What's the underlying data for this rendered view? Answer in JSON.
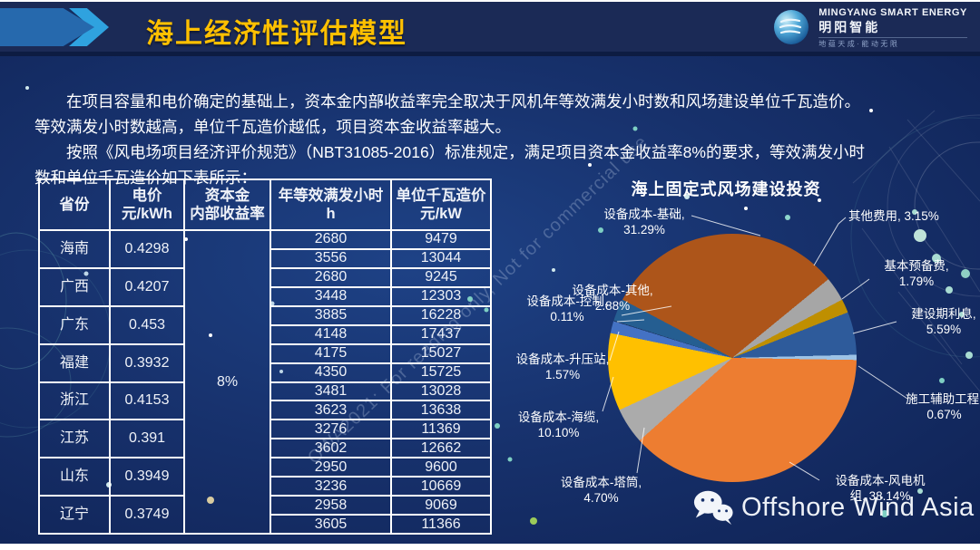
{
  "header": {
    "title": "海上经济性评估模型"
  },
  "logo": {
    "line1": "MINGYANG SMART ENERGY",
    "line2": "明阳智能",
    "line3": "地蕴天成·能动无限"
  },
  "paragraphs": {
    "p1": "在项目容量和电价确定的基础上，资本金内部收益率完全取决于风机年等效满发小时数和风场建设单位千瓦造价。等效满发小时数越高，单位千瓦造价越低，项目资本金收益率越大。",
    "p2": "按照《风电场项目经济评价规范》（NBT31085-2016）标准规定，满足项目资本金收益率8%的要求，等效满发小时数和单位千瓦造价如下表所示："
  },
  "table": {
    "columns": {
      "province": {
        "line1": "省份",
        "line2": ""
      },
      "price": {
        "line1": "电价",
        "line2": "元/kWh"
      },
      "irr": {
        "line1": "资本金",
        "line2": "内部收益率"
      },
      "hours": {
        "line1": "年等效满发小时",
        "line2": "h"
      },
      "cost": {
        "line1": "单位千瓦造价",
        "line2": "元/kW"
      }
    },
    "irr_value": "8%",
    "rows": [
      {
        "province": "海南",
        "price": "0.4298",
        "hours": [
          "2680",
          "3556"
        ],
        "costs": [
          "9479",
          "13044"
        ]
      },
      {
        "province": "广西",
        "price": "0.4207",
        "hours": [
          "2680",
          "3448"
        ],
        "costs": [
          "9245",
          "12303"
        ]
      },
      {
        "province": "广东",
        "price": "0.453",
        "hours": [
          "3885",
          "4148"
        ],
        "costs": [
          "16228",
          "17437"
        ]
      },
      {
        "province": "福建",
        "price": "0.3932",
        "hours": [
          "4175",
          "4350"
        ],
        "costs": [
          "15027",
          "15725"
        ]
      },
      {
        "province": "浙江",
        "price": "0.4153",
        "hours": [
          "3481",
          "3623"
        ],
        "costs": [
          "13028",
          "13638"
        ]
      },
      {
        "province": "江苏",
        "price": "0.391",
        "hours": [
          "3276",
          "3602"
        ],
        "costs": [
          "11369",
          "12662"
        ]
      },
      {
        "province": "山东",
        "price": "0.3949",
        "hours": [
          "2950",
          "3236"
        ],
        "costs": [
          "9600",
          "10669"
        ]
      },
      {
        "province": "辽宁",
        "price": "0.3749",
        "hours": [
          "2958",
          "3605"
        ],
        "costs": [
          "9069",
          "11366"
        ]
      }
    ]
  },
  "chart_data": {
    "type": "pie",
    "title": "海上固定式风场建设投资",
    "start_angle_deg": -62,
    "legend_position": "outside-labels",
    "slices": [
      {
        "name": "设备成本-基础",
        "value": 31.29,
        "color": "#AD551A",
        "label_line1": "设备成本-基础,",
        "label_line2": "31.29%"
      },
      {
        "name": "其他费用",
        "value": 3.15,
        "color": "#A6A6A6",
        "label_line1": "其他费用, 3.15%",
        "label_line2": ""
      },
      {
        "name": "基本预备费",
        "value": 1.79,
        "color": "#BF8F00",
        "label_line1": "基本预备费,",
        "label_line2": "1.79%"
      },
      {
        "name": "建设期利息",
        "value": 5.59,
        "color": "#2E5B9B",
        "label_line1": "建设期利息,",
        "label_line2": "5.59%"
      },
      {
        "name": "施工辅助工程",
        "value": 0.67,
        "color": "#9DC3E6",
        "label_line1": "施工辅助工程,",
        "label_line2": "0.67%"
      },
      {
        "name": "设备成本-风电机组",
        "value": 38.14,
        "color": "#ED7D31",
        "label_line1": "设备成本-风电机",
        "label_line2": "组, 38.14%"
      },
      {
        "name": "设备成本-塔筒",
        "value": 4.7,
        "color": "#ABABAB",
        "label_line1": "设备成本-塔筒,",
        "label_line2": "4.70%"
      },
      {
        "name": "设备成本-海缆",
        "value": 10.1,
        "color": "#FFC000",
        "label_line1": "设备成本-海缆,",
        "label_line2": "10.10%"
      },
      {
        "name": "设备成本-升压站",
        "value": 1.57,
        "color": "#4472C4",
        "label_line1": "设备成本-升压站,",
        "label_line2": "1.57%"
      },
      {
        "name": "设备成本-控制",
        "value": 0.11,
        "color": "#1F3864",
        "label_line1": "设备成本-控制,",
        "label_line2": "0.11%"
      },
      {
        "name": "设备成本-其他",
        "value": 2.88,
        "color": "#255E91",
        "label_line1": "设备成本-其他,",
        "label_line2": "2.88%"
      }
    ]
  },
  "watermarks": {
    "diagonal": "OWA2021: For reading only, Not for commercial use",
    "brand": "Offshore Wind Asia"
  }
}
